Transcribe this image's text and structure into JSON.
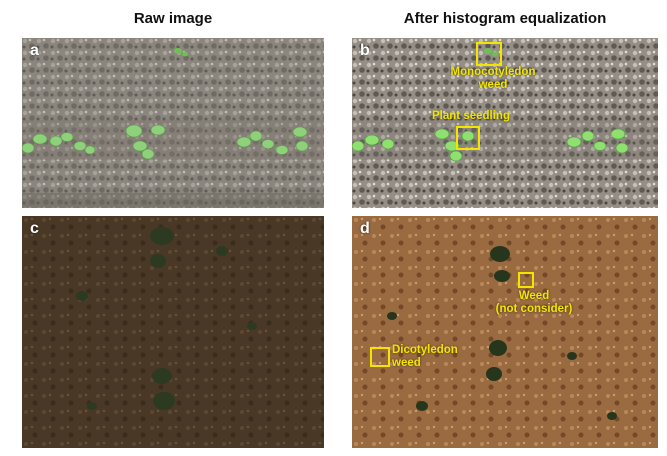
{
  "titles": {
    "left": "Raw image",
    "right": "After histogram equalization"
  },
  "panels": {
    "a": {
      "letter": "a"
    },
    "b": {
      "letter": "b",
      "annotations": {
        "monocot_line1": "Monocotyledon",
        "monocot_line2": "weed",
        "seedling": "Plant seedling"
      }
    },
    "c": {
      "letter": "c"
    },
    "d": {
      "letter": "d",
      "annotations": {
        "weed_line1": "Weed",
        "weed_line2": "(not consider)",
        "dicot_line1": "Dicotyledon",
        "dicot_line2": "weed"
      }
    }
  },
  "colors": {
    "annotation": "#f2e500",
    "gravel_soil": "#8f8a82",
    "equalized_gravel": "#9a948c",
    "dark_soil": "#4b3a26",
    "equalized_soil": "#9a6a40",
    "seedling_green": "#8fd07a"
  }
}
